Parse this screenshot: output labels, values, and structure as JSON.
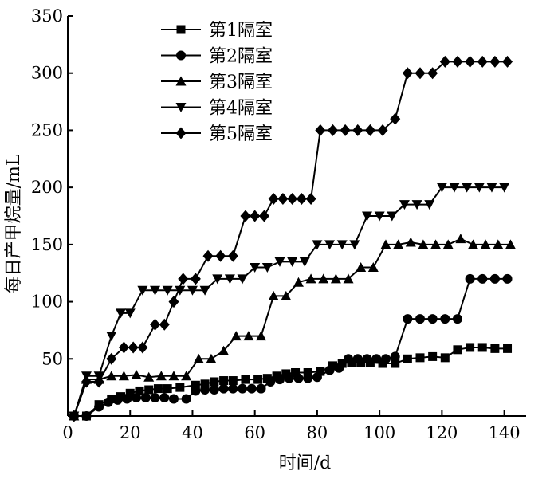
{
  "chart_data": {
    "type": "line",
    "xlabel": "时间/d",
    "ylabel": "每日产甲烷量/mL",
    "xlim": [
      0,
      147
    ],
    "ylim": [
      0,
      350
    ],
    "xticks": [
      0,
      20,
      40,
      60,
      80,
      100,
      120,
      140
    ],
    "yticks": [
      50,
      100,
      150,
      200,
      250,
      300,
      350
    ],
    "grid": false,
    "legend_position": "top-center",
    "series": [
      {
        "name": "第1隔室",
        "marker": "square",
        "x": [
          2,
          6,
          10,
          14,
          17,
          20,
          23,
          26,
          29,
          32,
          36,
          41,
          44,
          47,
          50,
          53,
          57,
          61,
          64,
          67,
          70,
          73,
          77,
          81,
          85,
          88,
          91,
          94,
          97,
          101,
          105,
          109,
          113,
          117,
          121,
          125,
          129,
          133,
          137,
          141
        ],
        "y": [
          0,
          0,
          10,
          15,
          17,
          20,
          22,
          23,
          24,
          24,
          25,
          27,
          28,
          30,
          31,
          31,
          32,
          32,
          33,
          35,
          37,
          38,
          38,
          39,
          44,
          46,
          47,
          47,
          47,
          46,
          46,
          50,
          51,
          52,
          51,
          58,
          60,
          60,
          59,
          59
        ]
      },
      {
        "name": "第2隔室",
        "marker": "circle",
        "x": [
          2,
          6,
          10,
          13,
          16,
          19,
          22,
          25,
          28,
          31,
          34,
          38,
          41,
          44,
          47,
          50,
          53,
          56,
          59,
          62,
          65,
          68,
          71,
          74,
          77,
          80,
          84,
          87,
          90,
          93,
          96,
          99,
          102,
          105,
          109,
          113,
          117,
          121,
          125,
          129,
          133,
          137,
          141
        ],
        "y": [
          0,
          0,
          8,
          12,
          14,
          15,
          16,
          16,
          16,
          16,
          15,
          15,
          22,
          23,
          23,
          24,
          24,
          24,
          24,
          24,
          30,
          32,
          33,
          33,
          33,
          34,
          40,
          42,
          50,
          50,
          50,
          50,
          50,
          52,
          85,
          85,
          85,
          85,
          85,
          120,
          120,
          120,
          120
        ]
      },
      {
        "name": "第3隔室",
        "marker": "triangle-up",
        "x": [
          2,
          6,
          10,
          14,
          18,
          22,
          26,
          30,
          34,
          38,
          42,
          46,
          50,
          54,
          58,
          62,
          66,
          70,
          74,
          78,
          82,
          86,
          90,
          94,
          98,
          102,
          106,
          110,
          114,
          118,
          122,
          126,
          130,
          134,
          138,
          142
        ],
        "y": [
          0,
          32,
          32,
          35,
          35,
          36,
          34,
          35,
          35,
          35,
          50,
          50,
          57,
          70,
          70,
          70,
          105,
          105,
          117,
          120,
          120,
          120,
          120,
          130,
          130,
          150,
          150,
          152,
          150,
          150,
          150,
          155,
          150,
          150,
          150,
          150
        ]
      },
      {
        "name": "第4隔室",
        "marker": "triangle-down",
        "x": [
          2,
          6,
          10,
          14,
          17,
          20,
          24,
          28,
          32,
          36,
          40,
          44,
          48,
          52,
          56,
          60,
          64,
          68,
          72,
          76,
          80,
          84,
          88,
          92,
          96,
          100,
          104,
          108,
          112,
          116,
          120,
          124,
          128,
          132,
          136,
          140
        ],
        "y": [
          0,
          35,
          35,
          70,
          90,
          90,
          110,
          110,
          110,
          110,
          110,
          110,
          120,
          120,
          120,
          130,
          130,
          135,
          135,
          135,
          150,
          150,
          150,
          150,
          175,
          175,
          175,
          185,
          185,
          185,
          200,
          200,
          200,
          200,
          200,
          200
        ]
      },
      {
        "name": "第5隔室",
        "marker": "diamond",
        "x": [
          2,
          6,
          10,
          14,
          18,
          21,
          24,
          28,
          31,
          34,
          37,
          41,
          45,
          49,
          53,
          57,
          60,
          63,
          66,
          69,
          72,
          75,
          78,
          81,
          85,
          89,
          93,
          97,
          101,
          105,
          109,
          113,
          117,
          121,
          125,
          129,
          133,
          137,
          141
        ],
        "y": [
          0,
          30,
          30,
          50,
          60,
          60,
          60,
          80,
          80,
          100,
          120,
          120,
          140,
          140,
          140,
          175,
          175,
          175,
          190,
          190,
          190,
          190,
          190,
          250,
          250,
          250,
          250,
          250,
          250,
          260,
          300,
          300,
          300,
          310,
          310,
          310,
          310,
          310,
          310
        ]
      }
    ]
  }
}
